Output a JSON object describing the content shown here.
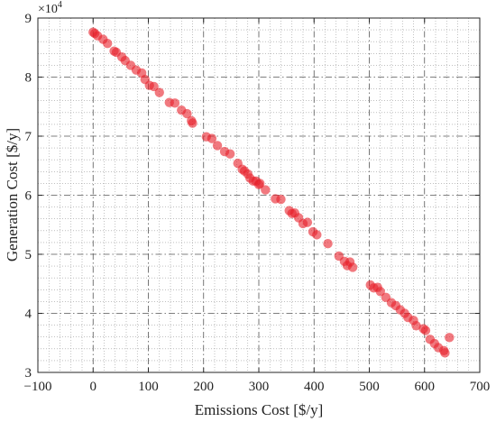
{
  "chart_data": {
    "type": "scatter",
    "title": "",
    "xlabel": "Emissions Cost [$/y]",
    "ylabel": "Generation Cost [$/y]",
    "xlim": [
      -100,
      700
    ],
    "ylim": [
      3,
      9
    ],
    "x_ticks": [
      -100,
      0,
      100,
      200,
      300,
      400,
      500,
      600,
      700
    ],
    "x_tick_labels": [
      "−100",
      "0",
      "100",
      "200",
      "300",
      "400",
      "500",
      "600",
      "700"
    ],
    "y_ticks": [
      3,
      4,
      5,
      6,
      7,
      8,
      9
    ],
    "y_tick_labels": [
      "3",
      "4",
      "5",
      "6",
      "7",
      "8",
      "9"
    ],
    "y_multiplier": {
      "base": "×10",
      "exponent": "4"
    },
    "grid": true,
    "minor_grid": true,
    "box": true,
    "marker_color": "#e8202a",
    "marker_opacity": 0.6,
    "series": [
      {
        "points": [
          [
            0,
            8.76
          ],
          [
            3,
            8.74
          ],
          [
            8,
            8.7
          ],
          [
            18,
            8.64
          ],
          [
            26,
            8.57
          ],
          [
            38,
            8.44
          ],
          [
            42,
            8.42
          ],
          [
            52,
            8.34
          ],
          [
            58,
            8.28
          ],
          [
            68,
            8.2
          ],
          [
            78,
            8.12
          ],
          [
            88,
            8.07
          ],
          [
            94,
            7.96
          ],
          [
            102,
            7.86
          ],
          [
            110,
            7.84
          ],
          [
            120,
            7.74
          ],
          [
            138,
            7.57
          ],
          [
            148,
            7.56
          ],
          [
            160,
            7.44
          ],
          [
            170,
            7.38
          ],
          [
            178,
            7.26
          ],
          [
            180,
            7.22
          ],
          [
            205,
            6.99
          ],
          [
            215,
            6.96
          ],
          [
            225,
            6.84
          ],
          [
            238,
            6.74
          ],
          [
            248,
            6.7
          ],
          [
            262,
            6.54
          ],
          [
            270,
            6.44
          ],
          [
            274,
            6.41
          ],
          [
            280,
            6.36
          ],
          [
            284,
            6.29
          ],
          [
            290,
            6.24
          ],
          [
            295,
            6.24
          ],
          [
            300,
            6.18
          ],
          [
            302,
            6.2
          ],
          [
            312,
            6.09
          ],
          [
            330,
            5.94
          ],
          [
            340,
            5.93
          ],
          [
            355,
            5.74
          ],
          [
            360,
            5.69
          ],
          [
            365,
            5.7
          ],
          [
            372,
            5.62
          ],
          [
            380,
            5.52
          ],
          [
            388,
            5.54
          ],
          [
            398,
            5.38
          ],
          [
            405,
            5.33
          ],
          [
            425,
            5.18
          ],
          [
            445,
            4.97
          ],
          [
            455,
            4.88
          ],
          [
            460,
            4.81
          ],
          [
            465,
            4.87
          ],
          [
            470,
            4.78
          ],
          [
            502,
            4.48
          ],
          [
            508,
            4.43
          ],
          [
            515,
            4.44
          ],
          [
            520,
            4.37
          ],
          [
            530,
            4.27
          ],
          [
            540,
            4.18
          ],
          [
            548,
            4.13
          ],
          [
            556,
            4.06
          ],
          [
            564,
            4.0
          ],
          [
            570,
            3.93
          ],
          [
            580,
            3.88
          ],
          [
            585,
            3.79
          ],
          [
            598,
            3.74
          ],
          [
            602,
            3.71
          ],
          [
            610,
            3.56
          ],
          [
            618,
            3.49
          ],
          [
            625,
            3.42
          ],
          [
            635,
            3.37
          ],
          [
            637,
            3.33
          ],
          [
            645,
            3.59
          ]
        ]
      }
    ]
  }
}
